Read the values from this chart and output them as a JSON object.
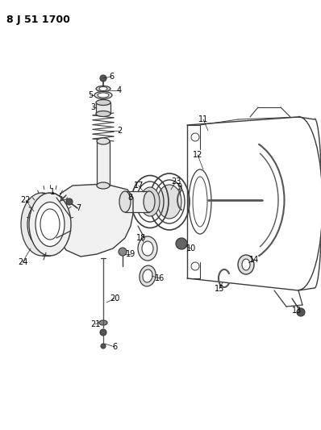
{
  "title": "8 J 51 1700",
  "bg_color": "#ffffff",
  "line_color": "#3a3a3a",
  "label_color": "#000000",
  "figsize": [
    3.98,
    5.33
  ],
  "dpi": 100
}
